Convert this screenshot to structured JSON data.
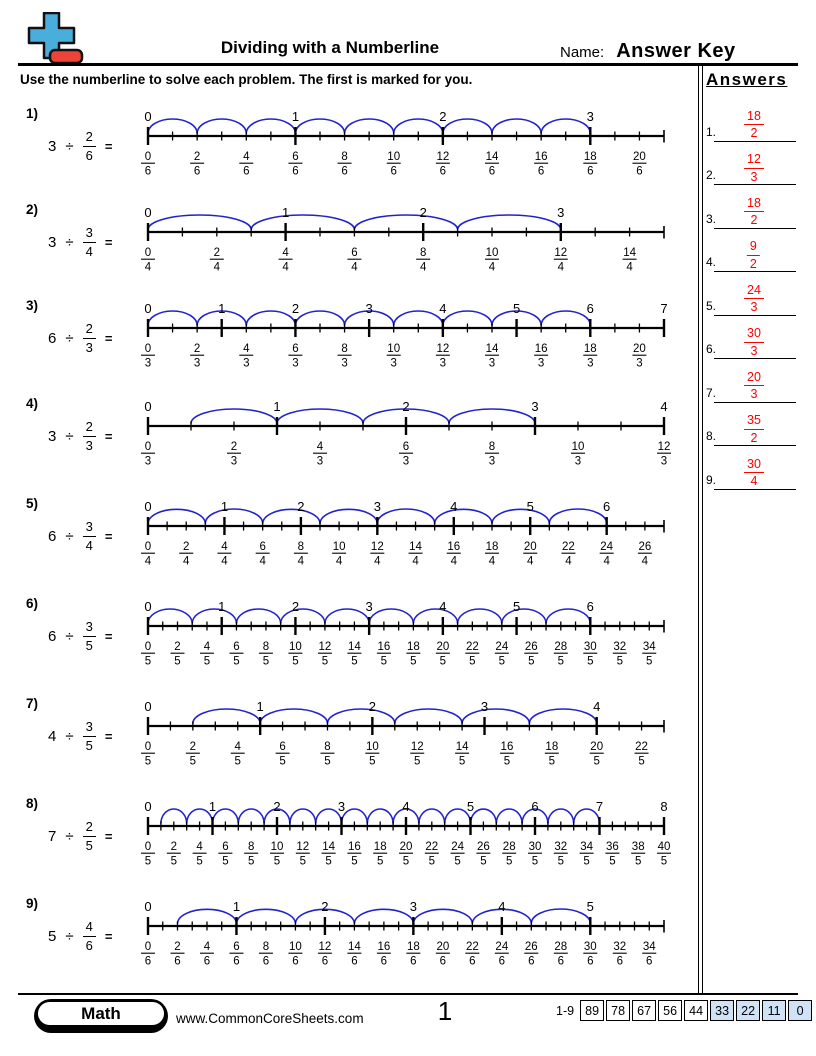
{
  "header": {
    "title": "Dividing with a Numberline",
    "name_label": "Name:",
    "name_value": "Answer Key"
  },
  "instruction": "Use the numberline to solve each problem. The first is marked for you.",
  "symbols": {
    "divide": "÷",
    "equals": "="
  },
  "colors": {
    "arc": "#2222cc",
    "answer_accent": "#ff0000",
    "score_highlight": "#cfe2f6",
    "logo_plus": "#4aaedd",
    "logo_minus": "#ee4338"
  },
  "answers_panel": {
    "title": "Answers",
    "items": [
      {
        "n": "1.",
        "numerator": "18",
        "denominator": "2"
      },
      {
        "n": "2.",
        "numerator": "12",
        "denominator": "3"
      },
      {
        "n": "3.",
        "numerator": "18",
        "denominator": "2"
      },
      {
        "n": "4.",
        "numerator": "9",
        "denominator": "2"
      },
      {
        "n": "5.",
        "numerator": "24",
        "denominator": "3"
      },
      {
        "n": "6.",
        "numerator": "30",
        "denominator": "3"
      },
      {
        "n": "7.",
        "numerator": "20",
        "denominator": "3"
      },
      {
        "n": "8.",
        "numerator": "35",
        "denominator": "2"
      },
      {
        "n": "9.",
        "numerator": "30",
        "denominator": "4"
      }
    ]
  },
  "problems": [
    {
      "label": "1)",
      "dividend": "3",
      "divisor_numerator": "2",
      "divisor_denominator": "6",
      "numberline": {
        "total_units": 21,
        "max_integer": 3,
        "max_fraction_label": 20,
        "arc_start": 0,
        "arc_end": 18
      }
    },
    {
      "label": "2)",
      "dividend": "3",
      "divisor_numerator": "3",
      "divisor_denominator": "4",
      "numberline": {
        "total_units": 15,
        "max_integer": 3,
        "max_fraction_label": 14,
        "arc_start": 0,
        "arc_end": 12
      }
    },
    {
      "label": "3)",
      "dividend": "6",
      "divisor_numerator": "2",
      "divisor_denominator": "3",
      "numberline": {
        "total_units": 21,
        "max_integer": 7,
        "max_fraction_label": 20,
        "arc_start": 0,
        "arc_end": 18
      }
    },
    {
      "label": "4)",
      "dividend": "3",
      "divisor_numerator": "2",
      "divisor_denominator": "3",
      "numberline": {
        "total_units": 12,
        "max_integer": 4,
        "max_fraction_label": 12,
        "arc_start": 1,
        "arc_end": 9
      }
    },
    {
      "label": "5)",
      "dividend": "6",
      "divisor_numerator": "3",
      "divisor_denominator": "4",
      "numberline": {
        "total_units": 27,
        "max_integer": 6,
        "max_fraction_label": 26,
        "arc_start": 0,
        "arc_end": 24
      }
    },
    {
      "label": "6)",
      "dividend": "6",
      "divisor_numerator": "3",
      "divisor_denominator": "5",
      "numberline": {
        "total_units": 35,
        "max_integer": 6,
        "max_fraction_label": 34,
        "arc_start": 0,
        "arc_end": 30
      }
    },
    {
      "label": "7)",
      "dividend": "4",
      "divisor_numerator": "3",
      "divisor_denominator": "5",
      "numberline": {
        "total_units": 23,
        "max_integer": 4,
        "max_fraction_label": 22,
        "arc_start": 2,
        "arc_end": 20
      }
    },
    {
      "label": "8)",
      "dividend": "7",
      "divisor_numerator": "2",
      "divisor_denominator": "5",
      "numberline": {
        "total_units": 40,
        "max_integer": 8,
        "max_fraction_label": 40,
        "arc_start": 1,
        "arc_end": 35
      }
    },
    {
      "label": "9)",
      "dividend": "5",
      "divisor_numerator": "4",
      "divisor_denominator": "6",
      "numberline": {
        "total_units": 35,
        "max_integer": 5,
        "max_fraction_label": 34,
        "arc_start": 2,
        "arc_end": 30
      }
    }
  ],
  "footer": {
    "subject": "Math",
    "website": "www.CommonCoreSheets.com",
    "page_number": "1",
    "score_label": "1-9",
    "scores": [
      "89",
      "78",
      "67",
      "56",
      "44",
      "33",
      "22",
      "11",
      "0"
    ],
    "score_highlight_from": 5
  }
}
